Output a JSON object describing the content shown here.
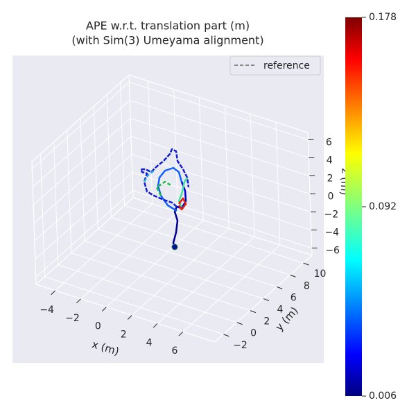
{
  "chart_data": {
    "type": "trajectory3d",
    "title": "APE w.r.t. translation part (m)",
    "subtitle": "(with Sim(3) Umeyama alignment)",
    "legend": {
      "labels": [
        "reference"
      ],
      "position": "upper right"
    },
    "xlabel": "x (m)",
    "ylabel": "y (m)",
    "zlabel": "z (m)",
    "xlim": [
      -5.5,
      8.5
    ],
    "xticks": [
      {
        "value": -4,
        "label": "−4"
      },
      {
        "value": -2,
        "label": "−2"
      },
      0,
      2,
      4,
      6
    ],
    "ylim": [
      -3.3,
      11.3
    ],
    "yticks": [
      {
        "value": -2,
        "label": "−2"
      },
      0,
      2,
      4,
      6,
      8,
      10
    ],
    "zlim": [
      -6.8,
      6.8
    ],
    "zticks": [
      {
        "value": -6,
        "label": "−6"
      },
      {
        "value": -4,
        "label": "−4"
      },
      {
        "value": -2,
        "label": "−2"
      },
      0,
      2,
      4,
      6
    ],
    "grid": true,
    "colorbar": {
      "colormap": "jet",
      "lim": [
        0.006,
        0.178
      ],
      "ticks": [
        0.006,
        0.092,
        0.178
      ]
    }
  }
}
